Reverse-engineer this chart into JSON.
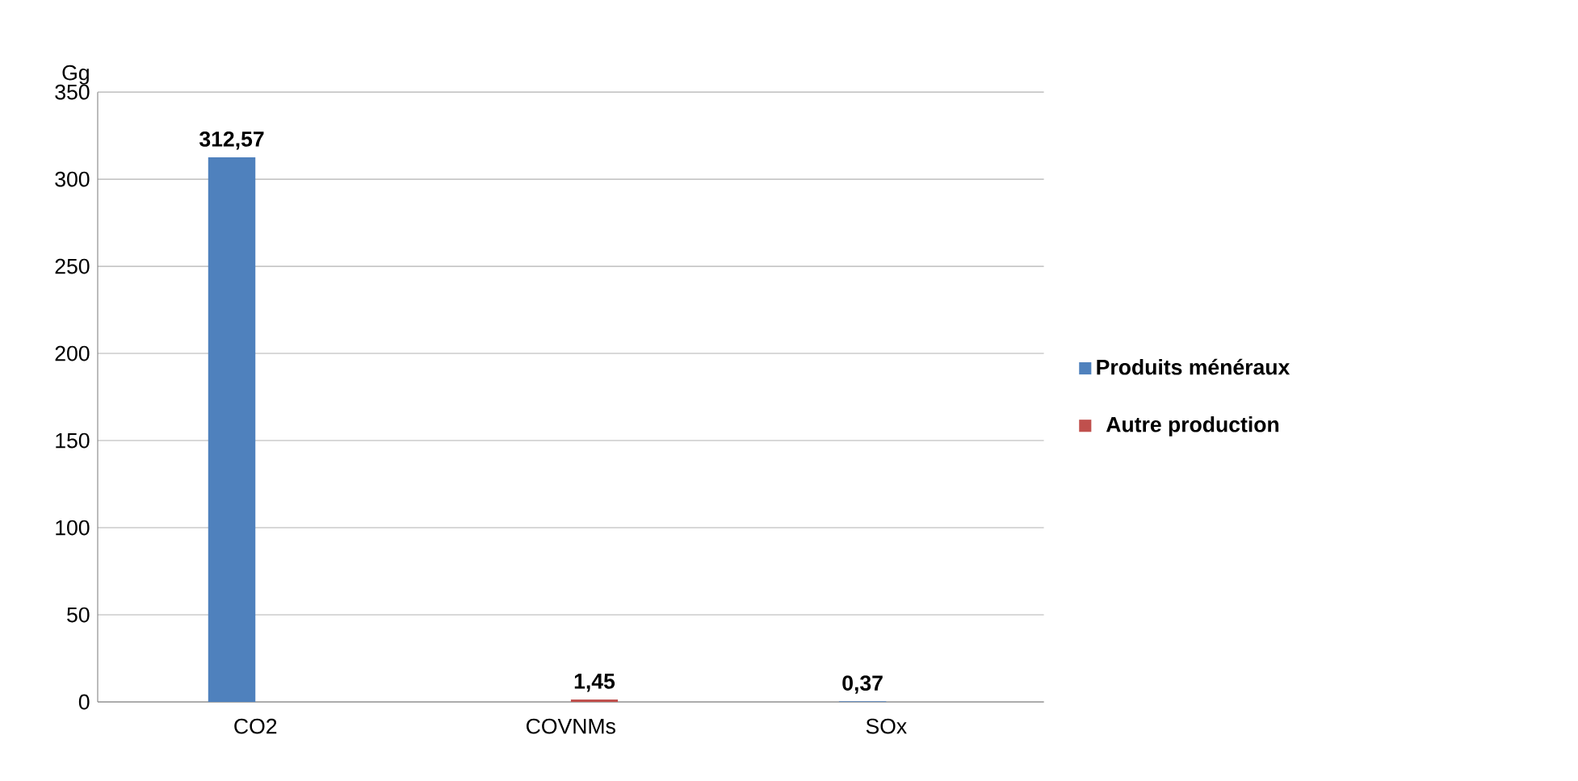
{
  "chart_data": {
    "type": "bar",
    "ylabel": "Gg",
    "categories": [
      "CO2",
      "COVNMs",
      "SOx"
    ],
    "series": [
      {
        "name": "Produits ménéraux",
        "color": "#4f81bd",
        "values": [
          312.57,
          null,
          0.37
        ],
        "value_labels": [
          "312,57",
          null,
          "0,37"
        ]
      },
      {
        "name": "Autre production",
        "color": "#c0504d",
        "values": [
          null,
          1.45,
          null
        ],
        "value_labels": [
          null,
          "1,45",
          null
        ]
      }
    ],
    "ylim": [
      0,
      350
    ],
    "yticks": [
      0,
      50,
      100,
      150,
      200,
      250,
      300,
      350
    ],
    "grid": "y",
    "legend": "right"
  }
}
